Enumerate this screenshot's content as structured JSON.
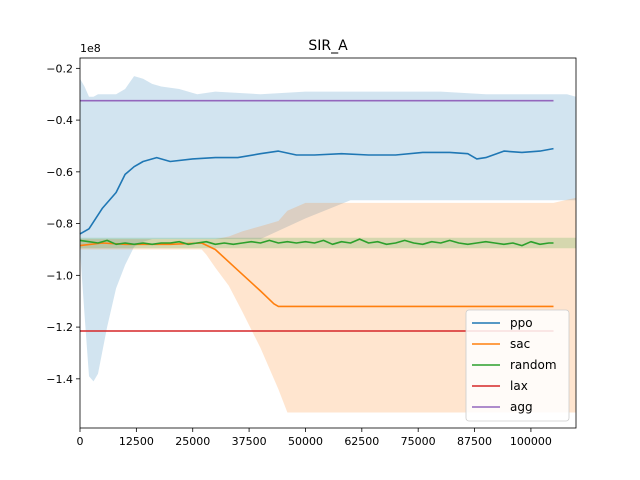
{
  "chart_data": {
    "type": "line",
    "title": "SIR_A",
    "xlabel": "",
    "ylabel": "",
    "y_scale_label": "1e8",
    "xlim": [
      0,
      110000
    ],
    "ylim": [
      -1.59,
      -0.16
    ],
    "x_ticks": [
      0,
      12500,
      25000,
      37500,
      50000,
      62500,
      75000,
      87500,
      100000
    ],
    "x_tick_labels": [
      "0",
      "12500",
      "25000",
      "37500",
      "50000",
      "62500",
      "75000",
      "87500",
      "100000"
    ],
    "y_ticks": [
      -0.2,
      -0.4,
      -0.6,
      -0.8,
      -1.0,
      -1.2,
      -1.4
    ],
    "y_tick_labels": [
      "−0.2",
      "−0.4",
      "−0.6",
      "−0.8",
      "−1.0",
      "−1.2",
      "−1.4"
    ],
    "legend_position": "lower-right",
    "series": [
      {
        "name": "ppo",
        "color": "#1f77b4",
        "x": [
          0,
          2000,
          5000,
          8000,
          10000,
          12000,
          14000,
          17000,
          20000,
          25000,
          30000,
          35000,
          40000,
          44000,
          48000,
          52000,
          58000,
          64000,
          70000,
          76000,
          82000,
          86000,
          88000,
          90000,
          94000,
          98000,
          102000,
          105000
        ],
        "y": [
          -0.84,
          -0.82,
          -0.74,
          -0.68,
          -0.61,
          -0.58,
          -0.56,
          -0.545,
          -0.56,
          -0.55,
          -0.545,
          -0.545,
          -0.53,
          -0.52,
          -0.535,
          -0.535,
          -0.53,
          -0.535,
          -0.535,
          -0.525,
          -0.525,
          -0.53,
          -0.55,
          -0.545,
          -0.52,
          -0.525,
          -0.52,
          -0.51
        ],
        "band_x": [
          0,
          1000,
          2000,
          3000,
          4000,
          6000,
          8000,
          10000,
          12000,
          14000,
          16000,
          18000,
          22000,
          26000,
          30000,
          40000,
          50000,
          60000,
          70000,
          80000,
          90000,
          100000,
          105000,
          108000,
          110000
        ],
        "band_upper": [
          -0.24,
          -0.27,
          -0.31,
          -0.31,
          -0.3,
          -0.3,
          -0.3,
          -0.28,
          -0.23,
          -0.24,
          -0.26,
          -0.27,
          -0.28,
          -0.3,
          -0.29,
          -0.3,
          -0.29,
          -0.29,
          -0.29,
          -0.29,
          -0.3,
          -0.3,
          -0.3,
          -0.3,
          -0.31
        ],
        "band_lower": [
          -0.9,
          -1.15,
          -1.39,
          -1.41,
          -1.38,
          -1.2,
          -1.05,
          -0.96,
          -0.89,
          -0.87,
          -0.86,
          -0.86,
          -0.86,
          -0.86,
          -0.86,
          -0.86,
          -0.78,
          -0.71,
          -0.71,
          -0.71,
          -0.71,
          -0.71,
          -0.71,
          -0.71,
          -0.71
        ]
      },
      {
        "name": "sac",
        "color": "#ff7f0e",
        "x": [
          0,
          5000,
          10000,
          15000,
          20000,
          27000,
          30000,
          35000,
          40000,
          43000,
          44000,
          50000,
          60000,
          70000,
          80000,
          90000,
          100000,
          105000
        ],
        "y": [
          -0.885,
          -0.875,
          -0.88,
          -0.88,
          -0.88,
          -0.875,
          -0.9,
          -0.98,
          -1.06,
          -1.11,
          -1.12,
          -1.12,
          -1.12,
          -1.12,
          -1.12,
          -1.12,
          -1.12,
          -1.12
        ],
        "band_x": [
          0,
          10000,
          20000,
          27000,
          28000,
          30000,
          33000,
          36000,
          40000,
          44000,
          46000,
          50000,
          60000,
          70000,
          80000,
          90000,
          100000,
          105000,
          110000
        ],
        "band_upper": [
          -0.86,
          -0.86,
          -0.86,
          -0.86,
          -0.86,
          -0.86,
          -0.85,
          -0.83,
          -0.81,
          -0.79,
          -0.75,
          -0.72,
          -0.72,
          -0.72,
          -0.72,
          -0.72,
          -0.72,
          -0.72,
          -0.7
        ],
        "band_lower": [
          -0.9,
          -0.9,
          -0.9,
          -0.9,
          -0.92,
          -0.97,
          -1.04,
          -1.14,
          -1.28,
          -1.44,
          -1.53,
          -1.53,
          -1.53,
          -1.53,
          -1.53,
          -1.53,
          -1.53,
          -1.53,
          -1.53
        ]
      },
      {
        "name": "random",
        "color": "#2ca02c",
        "x": [
          0,
          2000,
          4000,
          6000,
          8000,
          10000,
          12000,
          14000,
          16000,
          18000,
          20000,
          22000,
          24000,
          26000,
          28000,
          30000,
          32000,
          34000,
          36000,
          38000,
          40000,
          42000,
          44000,
          46000,
          48000,
          50000,
          52000,
          54000,
          56000,
          58000,
          60000,
          62000,
          64000,
          66000,
          68000,
          70000,
          72000,
          74000,
          76000,
          78000,
          80000,
          82000,
          84000,
          86000,
          88000,
          90000,
          92000,
          94000,
          96000,
          98000,
          100000,
          102000,
          104000,
          105000
        ],
        "y": [
          -0.865,
          -0.87,
          -0.875,
          -0.865,
          -0.88,
          -0.875,
          -0.88,
          -0.875,
          -0.88,
          -0.875,
          -0.875,
          -0.87,
          -0.88,
          -0.875,
          -0.87,
          -0.88,
          -0.875,
          -0.88,
          -0.875,
          -0.87,
          -0.875,
          -0.865,
          -0.875,
          -0.87,
          -0.875,
          -0.87,
          -0.875,
          -0.865,
          -0.88,
          -0.87,
          -0.875,
          -0.86,
          -0.875,
          -0.87,
          -0.88,
          -0.875,
          -0.865,
          -0.875,
          -0.88,
          -0.87,
          -0.875,
          -0.865,
          -0.875,
          -0.88,
          -0.875,
          -0.87,
          -0.875,
          -0.88,
          -0.875,
          -0.885,
          -0.87,
          -0.88,
          -0.875,
          -0.875
        ],
        "band_x": [
          0,
          110000
        ],
        "band_upper": [
          -0.855,
          -0.855
        ],
        "band_lower": [
          -0.895,
          -0.895
        ]
      },
      {
        "name": "lax",
        "color": "#d62728",
        "x": [
          0,
          105000
        ],
        "y": [
          -1.215,
          -1.215
        ]
      },
      {
        "name": "agg",
        "color": "#9467bd",
        "x": [
          0,
          105000
        ],
        "y": [
          -0.325,
          -0.325
        ]
      }
    ]
  }
}
